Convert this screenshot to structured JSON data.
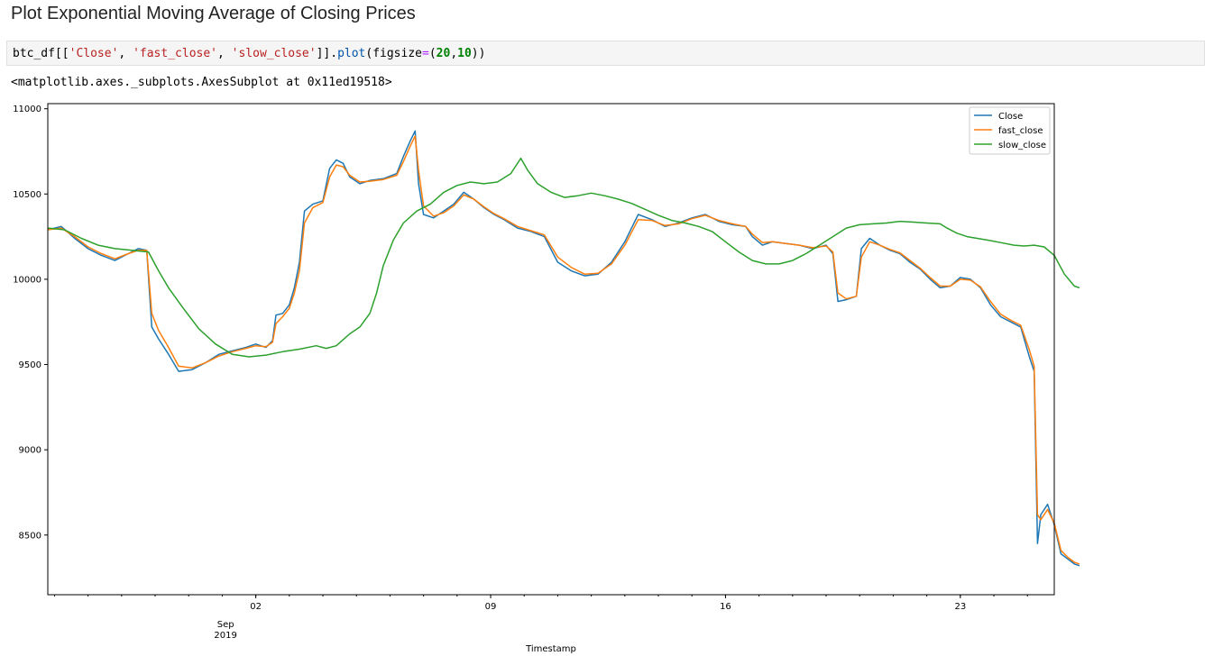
{
  "page": {
    "heading": "Plot Exponential Moving Average of Closing Prices",
    "code": {
      "p1": "btc_df[[",
      "s1": "'Close'",
      "p2": ", ",
      "s2": "'fast_close'",
      "p3": ", ",
      "s3": "'slow_close'",
      "p4": "]].",
      "fn": "plot",
      "p5": "(figsize",
      "op": "=",
      "p6": "(",
      "n1": "20",
      "p7": ",",
      "n2": "10",
      "p8": "))"
    },
    "output_text": "<matplotlib.axes._subplots.AxesSubplot at 0x11ed19518>"
  },
  "chart_data": {
    "type": "line",
    "xlabel": "Timestamp",
    "ylabel": "",
    "x_domain": [
      0,
      30
    ],
    "ylim": [
      8150,
      11030
    ],
    "y_ticks": [
      8500,
      9000,
      9500,
      10000,
      10500,
      11000
    ],
    "y_tick_labels": [
      "8500",
      "9000",
      "9500",
      "10000",
      "10500",
      "11000"
    ],
    "x_ticks": [
      {
        "x": 6.2,
        "label": "02"
      },
      {
        "x": 13.2,
        "label": "09"
      },
      {
        "x": 20.2,
        "label": "16"
      },
      {
        "x": 27.2,
        "label": "23"
      }
    ],
    "x_secondary": {
      "x": 5.3,
      "label1": "Sep",
      "label2": "2019"
    },
    "grid": false,
    "legend": "top-right",
    "series": [
      {
        "name": "Close",
        "color": "#1f77b4",
        "points": [
          [
            0,
            10290
          ],
          [
            0.4,
            10310
          ],
          [
            0.8,
            10240
          ],
          [
            1.2,
            10180
          ],
          [
            1.6,
            10140
          ],
          [
            2,
            10110
          ],
          [
            2.4,
            10150
          ],
          [
            2.7,
            10180
          ],
          [
            2.95,
            10170
          ],
          [
            3.1,
            9720
          ],
          [
            3.3,
            9650
          ],
          [
            3.6,
            9560
          ],
          [
            3.9,
            9460
          ],
          [
            4.3,
            9470
          ],
          [
            4.7,
            9510
          ],
          [
            5.1,
            9560
          ],
          [
            5.5,
            9580
          ],
          [
            5.9,
            9600
          ],
          [
            6.2,
            9620
          ],
          [
            6.5,
            9600
          ],
          [
            6.7,
            9640
          ],
          [
            6.8,
            9790
          ],
          [
            7,
            9800
          ],
          [
            7.2,
            9850
          ],
          [
            7.35,
            9950
          ],
          [
            7.5,
            10100
          ],
          [
            7.65,
            10400
          ],
          [
            7.9,
            10440
          ],
          [
            8.2,
            10460
          ],
          [
            8.4,
            10650
          ],
          [
            8.6,
            10700
          ],
          [
            8.8,
            10680
          ],
          [
            9,
            10600
          ],
          [
            9.3,
            10560
          ],
          [
            9.6,
            10580
          ],
          [
            10,
            10590
          ],
          [
            10.4,
            10620
          ],
          [
            10.6,
            10720
          ],
          [
            10.8,
            10810
          ],
          [
            10.95,
            10870
          ],
          [
            11.05,
            10560
          ],
          [
            11.2,
            10380
          ],
          [
            11.5,
            10360
          ],
          [
            11.8,
            10400
          ],
          [
            12.1,
            10440
          ],
          [
            12.4,
            10510
          ],
          [
            12.7,
            10470
          ],
          [
            13,
            10420
          ],
          [
            13.3,
            10380
          ],
          [
            13.6,
            10350
          ],
          [
            14,
            10300
          ],
          [
            14.4,
            10280
          ],
          [
            14.8,
            10250
          ],
          [
            15.2,
            10100
          ],
          [
            15.6,
            10050
          ],
          [
            16,
            10020
          ],
          [
            16.4,
            10030
          ],
          [
            16.8,
            10100
          ],
          [
            17.2,
            10220
          ],
          [
            17.6,
            10380
          ],
          [
            18,
            10350
          ],
          [
            18.4,
            10310
          ],
          [
            18.8,
            10330
          ],
          [
            19.2,
            10360
          ],
          [
            19.6,
            10380
          ],
          [
            20,
            10340
          ],
          [
            20.4,
            10320
          ],
          [
            20.8,
            10310
          ],
          [
            21,
            10250
          ],
          [
            21.3,
            10200
          ],
          [
            21.6,
            10220
          ],
          [
            22,
            10210
          ],
          [
            22.4,
            10200
          ],
          [
            22.8,
            10180
          ],
          [
            23.2,
            10200
          ],
          [
            23.4,
            10150
          ],
          [
            23.55,
            9870
          ],
          [
            23.8,
            9880
          ],
          [
            24.1,
            9900
          ],
          [
            24.25,
            10180
          ],
          [
            24.5,
            10240
          ],
          [
            24.8,
            10200
          ],
          [
            25.1,
            10170
          ],
          [
            25.4,
            10150
          ],
          [
            25.7,
            10100
          ],
          [
            26,
            10060
          ],
          [
            26.3,
            10000
          ],
          [
            26.6,
            9950
          ],
          [
            26.9,
            9960
          ],
          [
            27.2,
            10010
          ],
          [
            27.5,
            10000
          ],
          [
            27.8,
            9950
          ],
          [
            28.1,
            9850
          ],
          [
            28.4,
            9780
          ],
          [
            28.7,
            9750
          ],
          [
            29,
            9720
          ],
          [
            29.25,
            9550
          ],
          [
            29.4,
            9460
          ],
          [
            29.5,
            8450
          ],
          [
            29.6,
            8620
          ],
          [
            29.8,
            8680
          ],
          [
            30,
            8560
          ],
          [
            30.2,
            8390
          ],
          [
            30.4,
            8360
          ],
          [
            30.6,
            8330
          ],
          [
            30.75,
            8320
          ]
        ]
      },
      {
        "name": "fast_close",
        "color": "#ff7f0e",
        "points": [
          [
            0,
            10290
          ],
          [
            0.4,
            10300
          ],
          [
            0.8,
            10250
          ],
          [
            1.2,
            10190
          ],
          [
            1.6,
            10150
          ],
          [
            2,
            10120
          ],
          [
            2.4,
            10150
          ],
          [
            2.7,
            10170
          ],
          [
            2.95,
            10170
          ],
          [
            3.1,
            9800
          ],
          [
            3.3,
            9700
          ],
          [
            3.6,
            9600
          ],
          [
            3.9,
            9490
          ],
          [
            4.3,
            9480
          ],
          [
            4.7,
            9510
          ],
          [
            5.1,
            9550
          ],
          [
            5.5,
            9575
          ],
          [
            5.9,
            9595
          ],
          [
            6.2,
            9610
          ],
          [
            6.5,
            9605
          ],
          [
            6.7,
            9630
          ],
          [
            6.8,
            9740
          ],
          [
            7,
            9780
          ],
          [
            7.2,
            9830
          ],
          [
            7.35,
            9920
          ],
          [
            7.5,
            10050
          ],
          [
            7.65,
            10330
          ],
          [
            7.9,
            10420
          ],
          [
            8.2,
            10450
          ],
          [
            8.4,
            10600
          ],
          [
            8.6,
            10670
          ],
          [
            8.8,
            10660
          ],
          [
            9,
            10610
          ],
          [
            9.3,
            10570
          ],
          [
            9.6,
            10575
          ],
          [
            10,
            10585
          ],
          [
            10.4,
            10610
          ],
          [
            10.6,
            10690
          ],
          [
            10.8,
            10780
          ],
          [
            10.95,
            10840
          ],
          [
            11.05,
            10640
          ],
          [
            11.2,
            10430
          ],
          [
            11.5,
            10370
          ],
          [
            11.8,
            10390
          ],
          [
            12.1,
            10430
          ],
          [
            12.4,
            10495
          ],
          [
            12.7,
            10470
          ],
          [
            13,
            10425
          ],
          [
            13.3,
            10385
          ],
          [
            13.6,
            10355
          ],
          [
            14,
            10310
          ],
          [
            14.4,
            10285
          ],
          [
            14.8,
            10260
          ],
          [
            15.2,
            10130
          ],
          [
            15.6,
            10070
          ],
          [
            16,
            10030
          ],
          [
            16.4,
            10035
          ],
          [
            16.8,
            10090
          ],
          [
            17.2,
            10200
          ],
          [
            17.6,
            10350
          ],
          [
            18,
            10345
          ],
          [
            18.4,
            10315
          ],
          [
            18.8,
            10325
          ],
          [
            19.2,
            10355
          ],
          [
            19.6,
            10375
          ],
          [
            20,
            10345
          ],
          [
            20.4,
            10325
          ],
          [
            20.8,
            10310
          ],
          [
            21,
            10265
          ],
          [
            21.3,
            10215
          ],
          [
            21.6,
            10220
          ],
          [
            22,
            10210
          ],
          [
            22.4,
            10200
          ],
          [
            22.8,
            10185
          ],
          [
            23.2,
            10195
          ],
          [
            23.4,
            10160
          ],
          [
            23.55,
            9920
          ],
          [
            23.8,
            9885
          ],
          [
            24.1,
            9900
          ],
          [
            24.25,
            10130
          ],
          [
            24.5,
            10220
          ],
          [
            24.8,
            10200
          ],
          [
            25.1,
            10175
          ],
          [
            25.4,
            10155
          ],
          [
            25.7,
            10110
          ],
          [
            26,
            10065
          ],
          [
            26.3,
            10010
          ],
          [
            26.6,
            9960
          ],
          [
            26.9,
            9960
          ],
          [
            27.2,
            10000
          ],
          [
            27.5,
            9995
          ],
          [
            27.8,
            9955
          ],
          [
            28.1,
            9870
          ],
          [
            28.4,
            9795
          ],
          [
            28.7,
            9760
          ],
          [
            29,
            9730
          ],
          [
            29.25,
            9590
          ],
          [
            29.4,
            9490
          ],
          [
            29.5,
            8620
          ],
          [
            29.6,
            8590
          ],
          [
            29.8,
            8650
          ],
          [
            30,
            8570
          ],
          [
            30.2,
            8410
          ],
          [
            30.4,
            8370
          ],
          [
            30.6,
            8340
          ],
          [
            30.75,
            8330
          ]
        ]
      },
      {
        "name": "slow_close",
        "color": "#2ca02c",
        "points": [
          [
            0,
            10300
          ],
          [
            0.5,
            10290
          ],
          [
            1,
            10240
          ],
          [
            1.5,
            10200
          ],
          [
            2,
            10180
          ],
          [
            2.5,
            10170
          ],
          [
            3,
            10160
          ],
          [
            3.3,
            10050
          ],
          [
            3.6,
            9950
          ],
          [
            4,
            9840
          ],
          [
            4.5,
            9710
          ],
          [
            5,
            9620
          ],
          [
            5.5,
            9560
          ],
          [
            6,
            9545
          ],
          [
            6.5,
            9555
          ],
          [
            7,
            9575
          ],
          [
            7.5,
            9590
          ],
          [
            8,
            9610
          ],
          [
            8.3,
            9595
          ],
          [
            8.6,
            9610
          ],
          [
            9,
            9680
          ],
          [
            9.3,
            9720
          ],
          [
            9.6,
            9800
          ],
          [
            9.8,
            9920
          ],
          [
            10,
            10080
          ],
          [
            10.3,
            10230
          ],
          [
            10.6,
            10330
          ],
          [
            11,
            10400
          ],
          [
            11.4,
            10440
          ],
          [
            11.8,
            10510
          ],
          [
            12.2,
            10550
          ],
          [
            12.6,
            10570
          ],
          [
            13,
            10560
          ],
          [
            13.4,
            10570
          ],
          [
            13.8,
            10620
          ],
          [
            14.1,
            10710
          ],
          [
            14.3,
            10640
          ],
          [
            14.6,
            10560
          ],
          [
            15,
            10510
          ],
          [
            15.4,
            10480
          ],
          [
            15.8,
            10490
          ],
          [
            16.2,
            10505
          ],
          [
            16.6,
            10490
          ],
          [
            17,
            10470
          ],
          [
            17.4,
            10445
          ],
          [
            17.8,
            10410
          ],
          [
            18.2,
            10375
          ],
          [
            18.6,
            10345
          ],
          [
            19,
            10330
          ],
          [
            19.4,
            10310
          ],
          [
            19.8,
            10280
          ],
          [
            20.2,
            10220
          ],
          [
            20.6,
            10160
          ],
          [
            21,
            10110
          ],
          [
            21.4,
            10090
          ],
          [
            21.8,
            10090
          ],
          [
            22.2,
            10110
          ],
          [
            22.6,
            10150
          ],
          [
            23,
            10200
          ],
          [
            23.4,
            10250
          ],
          [
            23.8,
            10300
          ],
          [
            24.2,
            10320
          ],
          [
            24.6,
            10325
          ],
          [
            25,
            10330
          ],
          [
            25.4,
            10340
          ],
          [
            25.8,
            10335
          ],
          [
            26.2,
            10330
          ],
          [
            26.6,
            10325
          ],
          [
            26.8,
            10300
          ],
          [
            27.1,
            10270
          ],
          [
            27.4,
            10250
          ],
          [
            27.7,
            10240
          ],
          [
            28,
            10230
          ],
          [
            28.4,
            10215
          ],
          [
            28.8,
            10200
          ],
          [
            29.1,
            10195
          ],
          [
            29.4,
            10200
          ],
          [
            29.7,
            10190
          ],
          [
            30,
            10140
          ],
          [
            30.3,
            10030
          ],
          [
            30.6,
            9960
          ],
          [
            30.75,
            9950
          ]
        ]
      }
    ]
  }
}
